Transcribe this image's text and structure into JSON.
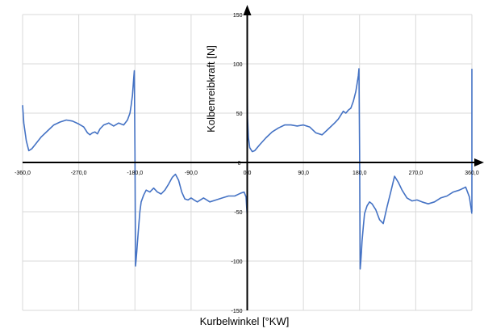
{
  "chart_data": {
    "type": "line",
    "xlabel": "Kurbelwinkel [°KW]",
    "ylabel": "Kolbenreibkraft [N]",
    "xlim": [
      -360,
      360
    ],
    "ylim": [
      -150,
      150
    ],
    "x_tick_values": [
      -360,
      -270,
      -180,
      -90,
      0,
      90,
      180,
      270,
      360
    ],
    "x_tick_labels": [
      "-360,0",
      "-270,0",
      "-180,0",
      "-90,0",
      "0,0",
      "90,0",
      "180,0",
      "270,0",
      "360,0"
    ],
    "y_tick_values": [
      -150,
      -100,
      -50,
      0,
      50,
      100,
      150
    ],
    "y_tick_labels": [
      "-150",
      "-100",
      "-50",
      "0",
      "50",
      "100",
      "150"
    ],
    "grid": true,
    "legend": false,
    "series_color": "#4472c4",
    "series": [
      {
        "x": [
          -360,
          -358,
          -354,
          -350,
          -345,
          -340,
          -330,
          -320,
          -310,
          -300,
          -290,
          -280,
          -270,
          -262,
          -256,
          -252,
          -248,
          -244,
          -240,
          -236,
          -230,
          -222,
          -214,
          -206,
          -198,
          -192,
          -188,
          -186,
          -184,
          -182,
          -181,
          -180,
          -179,
          -178,
          -177,
          -176,
          -174,
          -172,
          -170,
          -166,
          -162,
          -156,
          -150,
          -144,
          -138,
          -132,
          -126,
          -120,
          -115,
          -110,
          -105,
          -100,
          -95,
          -90,
          -85,
          -80,
          -70,
          -60,
          -50,
          -40,
          -30,
          -20,
          -10,
          -5,
          -2,
          0
        ],
        "y": [
          58,
          40,
          22,
          12,
          14,
          18,
          26,
          32,
          38,
          41,
          43,
          42,
          39,
          36,
          30,
          28,
          30,
          31,
          29,
          34,
          38,
          40,
          37,
          40,
          38,
          43,
          50,
          58,
          68,
          85,
          93,
          10,
          -105,
          -98,
          -90,
          -82,
          -65,
          -50,
          -40,
          -33,
          -28,
          -30,
          -26,
          -30,
          -32,
          -28,
          -22,
          -15,
          -12,
          -18,
          -30,
          -37,
          -38,
          -36,
          -38,
          -40,
          -36,
          -40,
          -38,
          -36,
          -34,
          -34,
          -31,
          -30,
          -35,
          -55
        ]
      },
      {
        "x": [
          0,
          0.5,
          2,
          4,
          8,
          12,
          16,
          20,
          30,
          40,
          50,
          60,
          70,
          80,
          90,
          100,
          110,
          120,
          130,
          140,
          146,
          150,
          154,
          158,
          162,
          166,
          170,
          174,
          176,
          178,
          179,
          180,
          181,
          182,
          183,
          184,
          186,
          188,
          192,
          196,
          200,
          206,
          212,
          218,
          224,
          230,
          236,
          242,
          248,
          256,
          264,
          272,
          280,
          290,
          300,
          310,
          320,
          330,
          340,
          350,
          356,
          360
        ],
        "y": [
          90,
          45,
          25,
          15,
          11,
          12,
          15,
          18,
          25,
          31,
          35,
          38,
          38,
          37,
          38,
          36,
          30,
          28,
          34,
          40,
          44,
          48,
          52,
          50,
          53,
          55,
          62,
          72,
          80,
          88,
          95,
          10,
          -108,
          -100,
          -90,
          -80,
          -65,
          -52,
          -44,
          -40,
          -42,
          -48,
          -58,
          -62,
          -45,
          -30,
          -14,
          -20,
          -28,
          -36,
          -39,
          -38,
          -40,
          -42,
          -40,
          -36,
          -34,
          -30,
          -28,
          -25,
          -35,
          -52
        ]
      },
      {
        "x": [
          360,
          360
        ],
        "y": [
          -50,
          95
        ]
      }
    ]
  }
}
